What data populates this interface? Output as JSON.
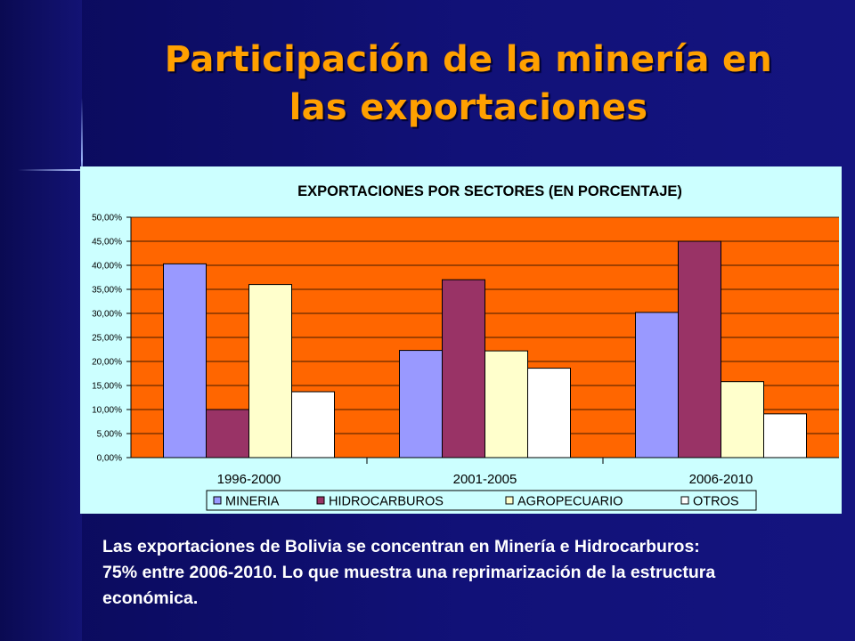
{
  "slide": {
    "title_line1": "Participación de la minería en",
    "title_line2": "las exportaciones",
    "caption_line1": "Las exportaciones de Bolivia se concentran en Minería e Hidrocarburos:",
    "caption_line2": "75% entre 2006-2010.   Lo que muestra una reprimarización de la estructura",
    "caption_line3": "económica."
  },
  "colors": {
    "plot_background": "#ff6600",
    "chart_background": "#ccffff",
    "title_text": "#ffa000"
  },
  "chart_data": {
    "type": "bar",
    "title": "EXPORTACIONES POR SECTORES (EN PORCENTAJE)",
    "xlabel": "",
    "ylabel": "",
    "categories": [
      "1996-2000",
      "2001-2005",
      "2006-2010"
    ],
    "series": [
      {
        "name": "MINERIA",
        "color": "#9999ff",
        "values": [
          40.3,
          22.3,
          30.2
        ]
      },
      {
        "name": "HIDROCARBUROS",
        "color": "#993366",
        "values": [
          10.0,
          37.0,
          45.0
        ]
      },
      {
        "name": "AGROPECUARIO",
        "color": "#ffffcc",
        "values": [
          36.0,
          22.2,
          15.8
        ]
      },
      {
        "name": "OTROS",
        "color": "#ffffff",
        "values": [
          13.7,
          18.6,
          9.1
        ]
      }
    ],
    "ylim": [
      0,
      50
    ],
    "yticks": [
      "0,00%",
      "5,00%",
      "10,00%",
      "15,00%",
      "20,00%",
      "25,00%",
      "30,00%",
      "35,00%",
      "40,00%",
      "45,00%",
      "50,00%"
    ],
    "grid": true,
    "legend_position": "bottom"
  }
}
